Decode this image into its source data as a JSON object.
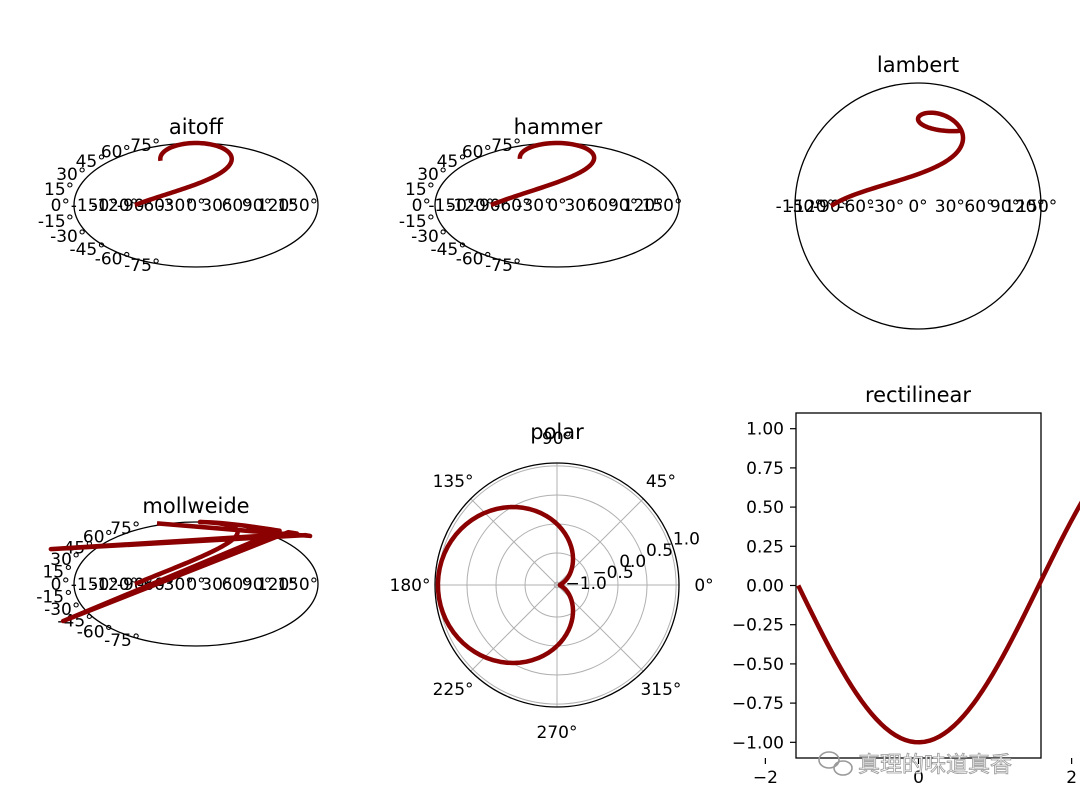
{
  "watermark": "真理的味道真香",
  "colors": {
    "line": "#8b0000",
    "grid": "#b0b0b0",
    "axes": "#000000"
  },
  "chart_data": [
    {
      "type": "line",
      "projection": "aitoff",
      "title": "aitoff",
      "series": [
        {
          "x": "theta_minus_pi_over_2",
          "y": "theta_over_3",
          "samples": 100
        }
      ],
      "x_ticklabels": [
        "-150°",
        "-120°",
        "-90°",
        "-60°",
        "-30°",
        "0°",
        "30°",
        "60°",
        "90°",
        "120°",
        "150°"
      ],
      "y_ticklabels": [
        "-75°",
        "-60°",
        "-45°",
        "-30°",
        "-15°",
        "0°",
        "15°",
        "30°",
        "45°",
        "60°",
        "75°"
      ],
      "grid": false
    },
    {
      "type": "line",
      "projection": "hammer",
      "title": "hammer",
      "series": [
        {
          "x": "theta_minus_pi_over_2",
          "y": "theta_over_3",
          "samples": 100
        }
      ],
      "x_ticklabels": [
        "-150°",
        "-120°",
        "-90°",
        "-60°",
        "-30°",
        "0°",
        "30°",
        "60°",
        "90°",
        "120°",
        "150°"
      ],
      "y_ticklabels": [
        "-75°",
        "-60°",
        "-45°",
        "-30°",
        "-15°",
        "0°",
        "15°",
        "30°",
        "45°",
        "60°",
        "75°"
      ],
      "grid": false
    },
    {
      "type": "line",
      "projection": "lambert",
      "title": "lambert",
      "series": [
        {
          "x": "theta_minus_pi_over_2",
          "y": "theta_over_3",
          "samples": 100
        }
      ],
      "x_ticklabels": [
        "-150°",
        "-120°",
        "-90°",
        "-60°",
        "-30°",
        "0°",
        "30°",
        "60°",
        "90°",
        "120°",
        "150°"
      ],
      "y_ticklabels": [],
      "grid": false
    },
    {
      "type": "line",
      "projection": "mollweide",
      "title": "mollweide",
      "series": [
        {
          "x": "theta_minus_pi_over_2",
          "y": "theta_over_3",
          "samples": 100
        }
      ],
      "x_ticklabels": [
        "-150°",
        "-120°",
        "-90°",
        "-60°",
        "-30°",
        "0°",
        "30°",
        "60°",
        "90°",
        "120°",
        "150°"
      ],
      "y_ticklabels": [
        "-75°",
        "-60°",
        "-45°",
        "-30°",
        "-15°",
        "0°",
        "15°",
        "30°",
        "45°",
        "60°",
        "75°"
      ],
      "grid": false
    },
    {
      "type": "line",
      "projection": "polar",
      "title": "polar",
      "series": [
        {
          "theta": "theta_minus_pi_over_2",
          "r": "sin_theta_minus_pi",
          "samples": 100
        }
      ],
      "theta_ticklabels": [
        "0°",
        "45°",
        "90°",
        "135°",
        "180°",
        "225°",
        "270°",
        "315°"
      ],
      "r_ticks": [
        -1.0,
        -0.5,
        0.0,
        0.5,
        1.0
      ],
      "r_ticklabels": [
        "−1.0",
        "−0.5",
        "0.0",
        "0.5",
        "1.0"
      ],
      "rlim": [
        -1.05,
        1.05
      ],
      "grid": true
    },
    {
      "type": "line",
      "projection": "rectilinear",
      "title": "rectilinear",
      "series": [
        {
          "x": "theta_minus_pi_over_2",
          "y": "sin_theta_minus_pi",
          "samples": 100
        }
      ],
      "xlim": [
        -1.6,
        1.6
      ],
      "ylim": [
        -1.1,
        1.1
      ],
      "x_ticks": [
        -2,
        0,
        2
      ],
      "x_ticklabels": [
        "−2",
        "0",
        "2"
      ],
      "y_ticks": [
        -1.0,
        -0.75,
        -0.5,
        -0.25,
        0.0,
        0.25,
        0.5,
        0.75,
        1.0
      ],
      "y_ticklabels": [
        "−1.00",
        "−0.75",
        "−0.50",
        "−0.25",
        "0.00",
        "0.25",
        "0.50",
        "0.75",
        "1.00"
      ],
      "grid": false
    }
  ]
}
